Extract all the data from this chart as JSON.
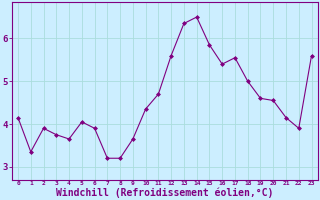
{
  "x": [
    0,
    1,
    2,
    3,
    4,
    5,
    6,
    7,
    8,
    9,
    10,
    11,
    12,
    13,
    14,
    15,
    16,
    17,
    18,
    19,
    20,
    21,
    22,
    23
  ],
  "y": [
    4.15,
    3.35,
    3.9,
    3.75,
    3.65,
    4.05,
    3.9,
    3.2,
    3.2,
    3.65,
    4.35,
    4.7,
    5.6,
    6.35,
    6.5,
    5.85,
    5.4,
    5.55,
    5.0,
    4.6,
    4.55,
    4.15,
    3.9,
    5.6
  ],
  "line_color": "#800080",
  "marker": "D",
  "marker_size": 2.0,
  "bg_color": "#cceeff",
  "grid_color": "#aadddd",
  "axis_color": "#800080",
  "tick_color": "#800080",
  "xlabel": "Windchill (Refroidissement éolien,°C)",
  "xlabel_fontsize": 7,
  "ylabel_ticks": [
    3,
    4,
    5,
    6
  ],
  "xlim": [
    -0.5,
    23.5
  ],
  "ylim": [
    2.7,
    6.85
  ]
}
